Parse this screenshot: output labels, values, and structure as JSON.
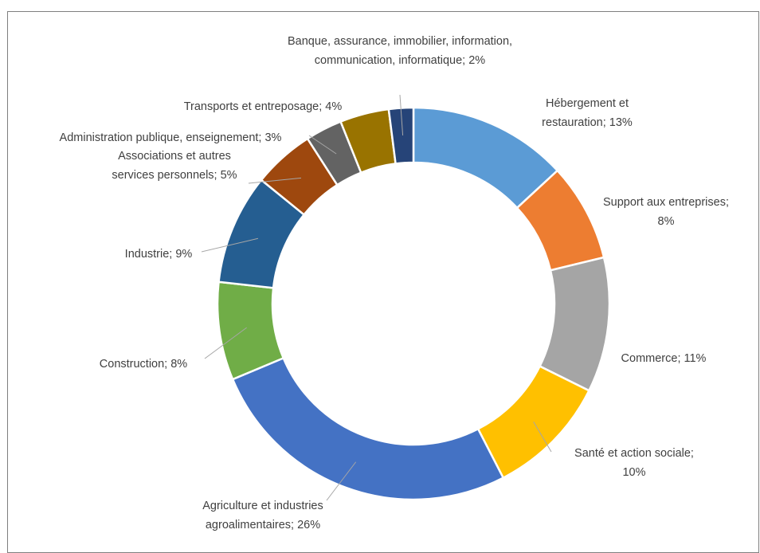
{
  "chart_data": {
    "type": "pie",
    "variant": "donut",
    "title": "",
    "legend": "none",
    "slices": [
      {
        "label": "Hébergement et restauration",
        "value": 13,
        "color": "#5B9BD5",
        "text_lines": [
          "Hébergement et",
          "restauration; 13%"
        ]
      },
      {
        "label": "Support aux entreprises",
        "value": 8,
        "color": "#ED7D31",
        "text_lines": [
          "Support aux entreprises;",
          "8%"
        ]
      },
      {
        "label": "Commerce",
        "value": 11,
        "color": "#A5A5A5",
        "text_lines": [
          "Commerce; 11%"
        ]
      },
      {
        "label": "Santé et action sociale",
        "value": 10,
        "color": "#FFC000",
        "text_lines": [
          "Santé et action sociale;",
          "10%"
        ]
      },
      {
        "label": "Agriculture et industries agroalimentaires",
        "value": 26,
        "color": "#4472C4",
        "text_lines": [
          "Agriculture et industries",
          "agroalimentaires; 26%"
        ]
      },
      {
        "label": "Construction",
        "value": 8,
        "color": "#70AD47",
        "text_lines": [
          "Construction; 8%"
        ]
      },
      {
        "label": "Industrie",
        "value": 9,
        "color": "#255E91",
        "text_lines": [
          "Industrie; 9%"
        ]
      },
      {
        "label": "Associations et autres services personnels",
        "value": 5,
        "color": "#9E480E",
        "text_lines": [
          "Associations et autres",
          "services personnels; 5%"
        ]
      },
      {
        "label": "Administration publique, enseignement",
        "value": 3,
        "color": "#636363",
        "text_lines": [
          "Administration publique, enseignement; 3%"
        ]
      },
      {
        "label": "Transports et entreposage",
        "value": 4,
        "color": "#997300",
        "text_lines": [
          "Transports et entreposage; 4%"
        ]
      },
      {
        "label": "Banque, assurance, immobilier, information, communication, informatique",
        "value": 2,
        "color": "#264478",
        "text_lines": [
          "Banque, assurance, immobilier, information,",
          "communication, informatique; 2%"
        ]
      }
    ]
  }
}
